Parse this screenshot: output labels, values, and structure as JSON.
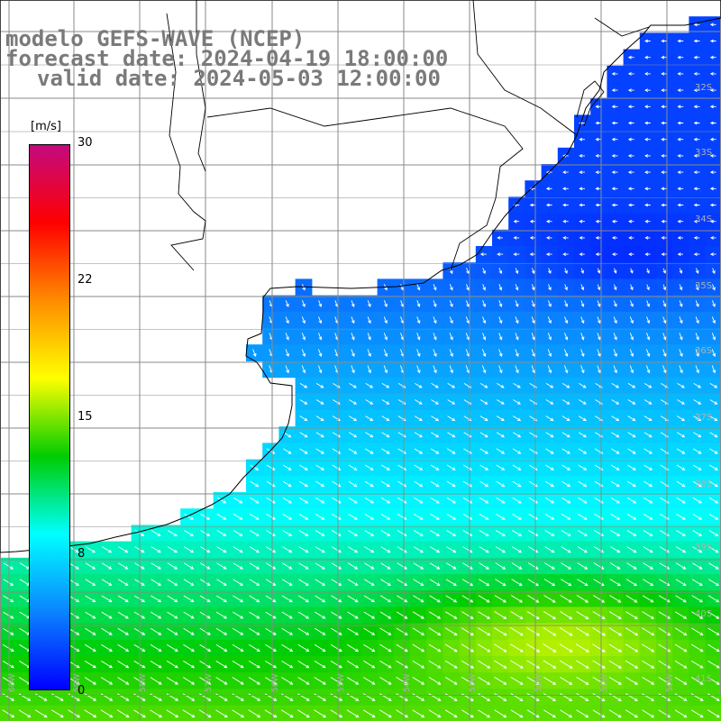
{
  "title": {
    "line1": "modelo GEFS-WAVE (NCEP)",
    "line2": "forecast date: 2024-04-19 18:00:00",
    "line3": "valid date: 2024-05-03 12:00:00"
  },
  "colorbar": {
    "units": "[m/s]",
    "ticks": [
      "30",
      "22",
      "15",
      "8",
      "0"
    ],
    "colors": [
      "#c40a7e",
      "#ff0000",
      "#ff8c00",
      "#ffff00",
      "#00cc00",
      "#00ffff",
      "#0a84ff",
      "#0000ff"
    ]
  },
  "latitude_labels": [
    "32S",
    "33S",
    "34S",
    "35S",
    "36S",
    "37S",
    "38S",
    "39S",
    "40S",
    "41S"
  ],
  "longitude_labels": [
    "60W",
    "59W",
    "58W",
    "57W",
    "56W",
    "55W",
    "54W",
    "53W",
    "52W",
    "51W",
    "50W"
  ],
  "colors": {
    "land": "#ffffff",
    "coastline": "#000000",
    "grid": "#8a8a8a",
    "arrows": "#ffffff",
    "title_text": "#7a7a7a"
  }
}
